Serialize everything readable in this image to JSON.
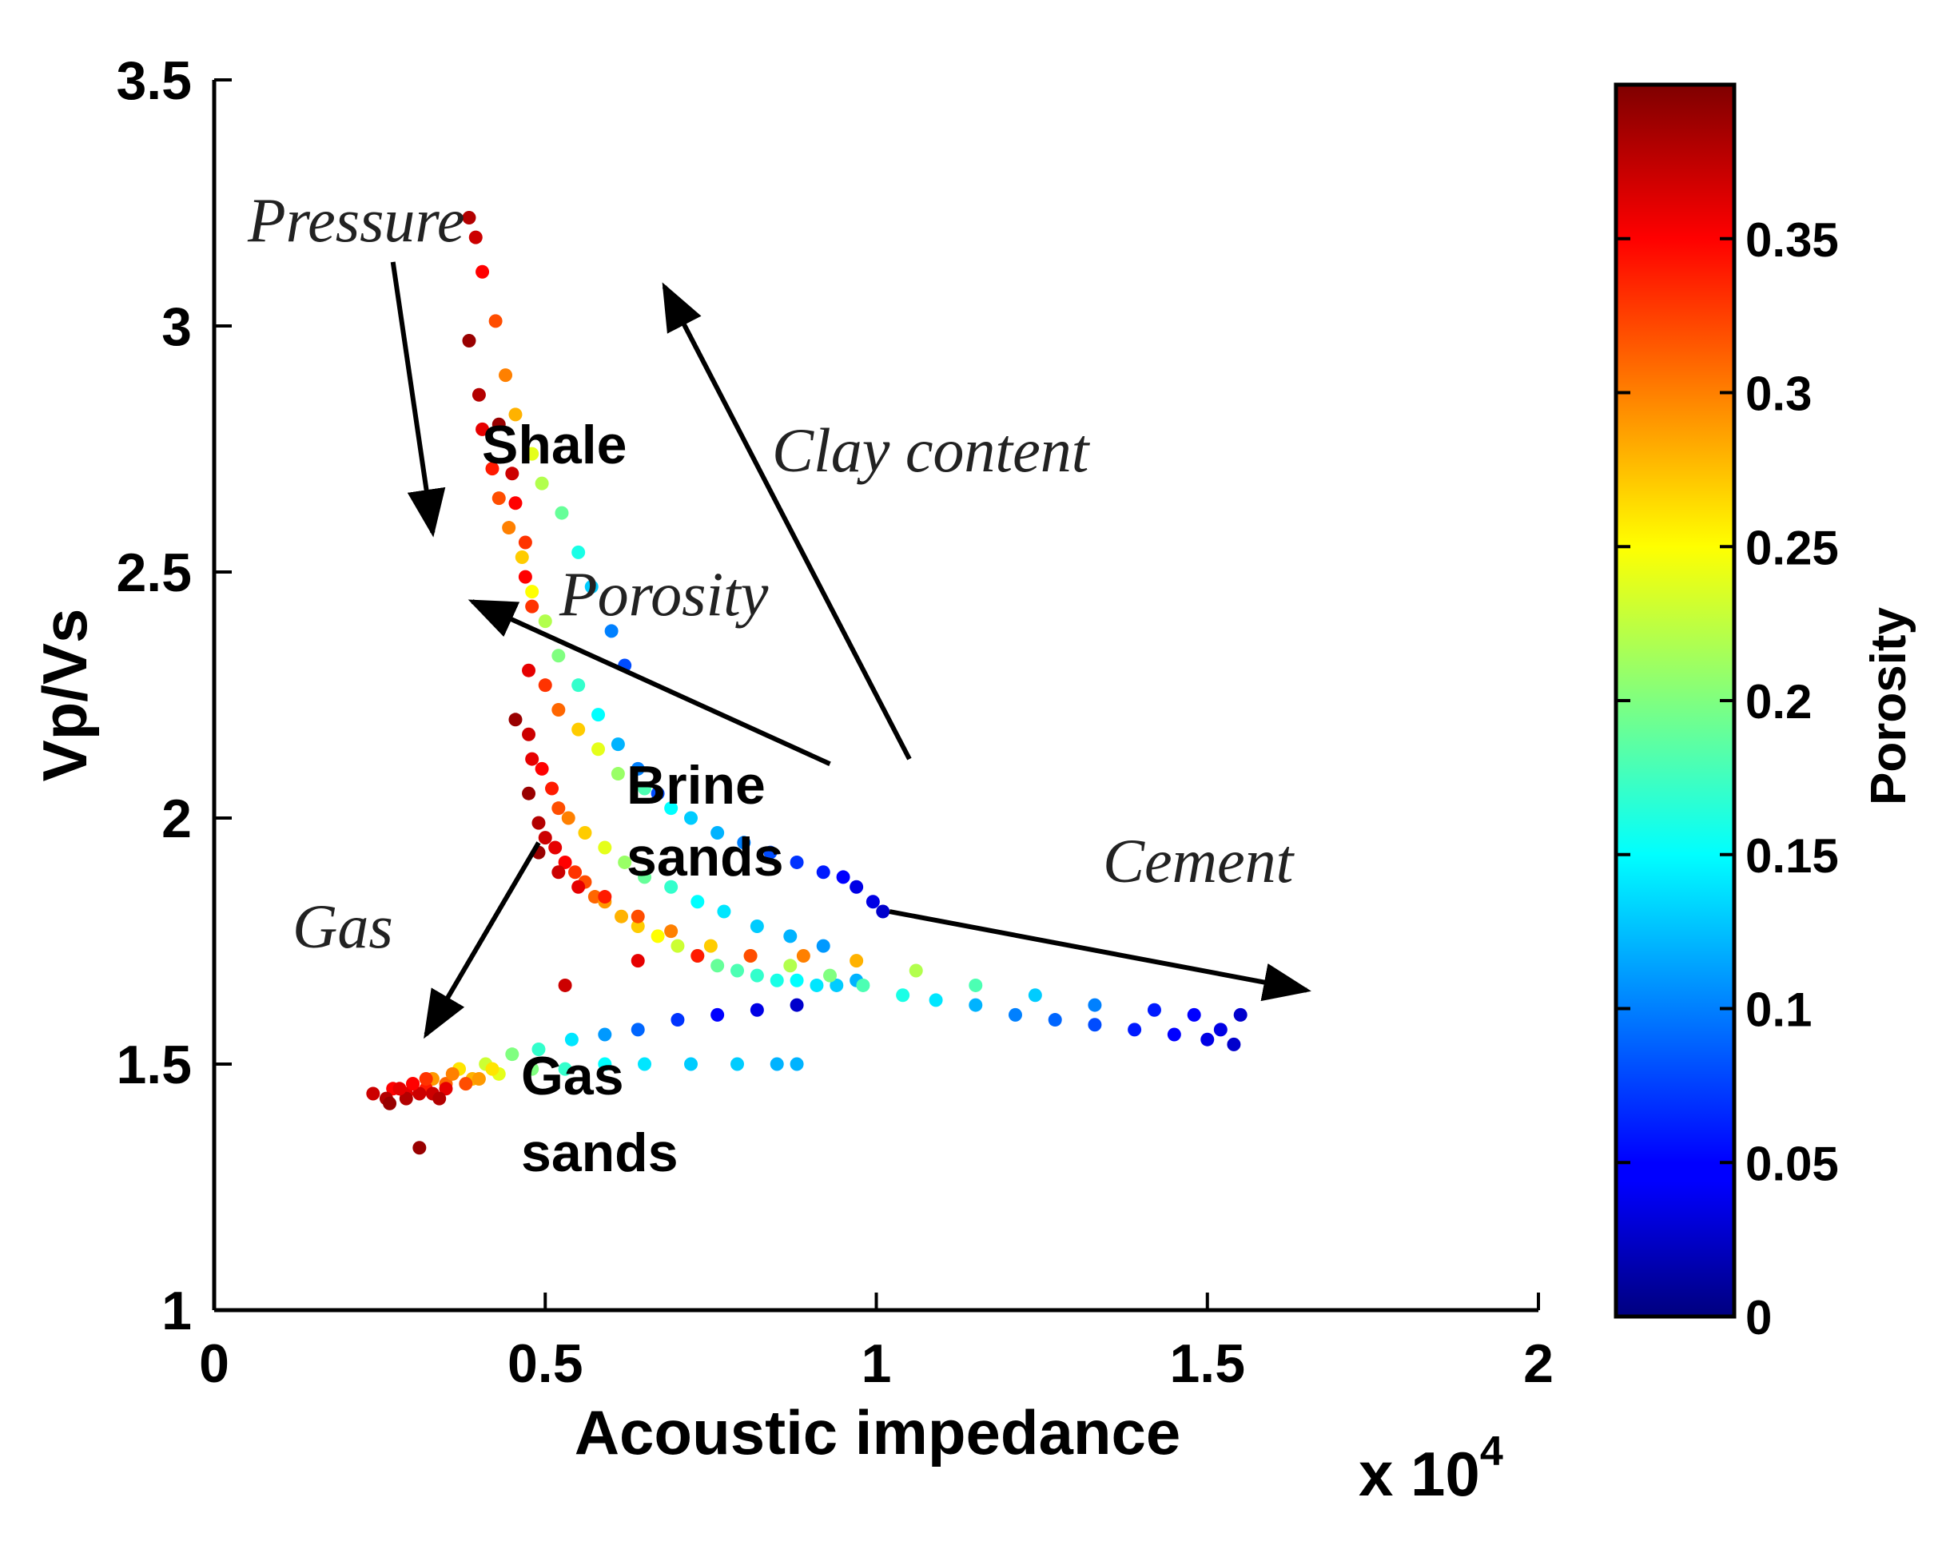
{
  "chart_data": {
    "type": "scatter",
    "xlabel": "Acoustic impedance",
    "xmultiplier": "x 10",
    "xmultiplier_exp": "4",
    "ylabel": "Vp/Vs",
    "xlim": [
      0,
      2
    ],
    "ylim": [
      1,
      3.5
    ],
    "x_ticks": [
      0,
      0.5,
      1,
      1.5,
      2
    ],
    "x_tick_labels": [
      "0",
      "0.5",
      "1",
      "1.5",
      "2"
    ],
    "y_ticks": [
      1,
      1.5,
      2,
      2.5,
      3,
      3.5
    ],
    "y_tick_labels": [
      "1",
      "1.5",
      "2",
      "2.5",
      "3",
      "3.5"
    ],
    "grid": false,
    "colorbar": {
      "label": "Porosity",
      "range": [
        0,
        0.4
      ],
      "colormap": "jet",
      "ticks": [
        0,
        0.05,
        0.1,
        0.15,
        0.2,
        0.25,
        0.3,
        0.35
      ],
      "tick_labels": [
        "0",
        "0.05",
        "0.1",
        "0.15",
        "0.2",
        "0.25",
        "0.3",
        "0.35"
      ]
    },
    "annotations": {
      "shale": "Shale",
      "brine_line1": "Brine",
      "brine_line2": "sands",
      "gas_sands_line1": "Gas",
      "gas_sands_line2": "sands",
      "pressure": "Pressure",
      "clay": "Clay content",
      "porosity": "Porosity",
      "gas": "Gas",
      "cement": "Cement"
    },
    "arrows": [
      {
        "name": "pressure",
        "from": [
          0.27,
          3.13
        ],
        "to": [
          0.33,
          2.58
        ]
      },
      {
        "name": "clay-content",
        "from": [
          1.05,
          2.12
        ],
        "to": [
          0.68,
          3.08
        ]
      },
      {
        "name": "porosity",
        "from": [
          0.93,
          2.11
        ],
        "to": [
          0.39,
          2.44
        ]
      },
      {
        "name": "gas",
        "from": [
          0.49,
          1.95
        ],
        "to": [
          0.32,
          1.56
        ]
      },
      {
        "name": "cement",
        "from": [
          1.02,
          1.81
        ],
        "to": [
          1.65,
          1.65
        ]
      }
    ],
    "series": [
      {
        "points": [
          [
            0.385,
            3.22,
            0.38
          ],
          [
            0.395,
            3.18,
            0.37
          ],
          [
            0.405,
            3.11,
            0.35
          ],
          [
            0.425,
            3.01,
            0.32
          ],
          [
            0.44,
            2.9,
            0.3
          ],
          [
            0.455,
            2.82,
            0.28
          ],
          [
            0.48,
            2.74,
            0.24
          ],
          [
            0.495,
            2.68,
            0.22
          ],
          [
            0.525,
            2.62,
            0.19
          ],
          [
            0.55,
            2.54,
            0.16
          ],
          [
            0.57,
            2.47,
            0.13
          ],
          [
            0.6,
            2.38,
            0.1
          ],
          [
            0.62,
            2.31,
            0.08
          ]
        ]
      },
      {
        "points": [
          [
            0.385,
            2.97,
            0.39
          ],
          [
            0.4,
            2.86,
            0.38
          ],
          [
            0.405,
            2.79,
            0.36
          ],
          [
            0.42,
            2.71,
            0.34
          ],
          [
            0.43,
            2.65,
            0.32
          ],
          [
            0.445,
            2.59,
            0.3
          ],
          [
            0.465,
            2.53,
            0.27
          ],
          [
            0.48,
            2.46,
            0.25
          ],
          [
            0.5,
            2.4,
            0.22
          ],
          [
            0.52,
            2.33,
            0.2
          ],
          [
            0.55,
            2.27,
            0.17
          ],
          [
            0.58,
            2.21,
            0.15
          ],
          [
            0.61,
            2.15,
            0.12
          ],
          [
            0.64,
            2.1,
            0.1
          ],
          [
            0.67,
            2.05,
            0.08
          ]
        ]
      },
      {
        "points": [
          [
            0.43,
            2.8,
            0.39
          ],
          [
            0.45,
            2.7,
            0.37
          ],
          [
            0.455,
            2.64,
            0.35
          ],
          [
            0.47,
            2.56,
            0.33
          ],
          [
            0.47,
            2.49,
            0.35
          ],
          [
            0.48,
            2.43,
            0.33
          ],
          [
            0.475,
            2.3,
            0.36
          ],
          [
            0.5,
            2.27,
            0.33
          ],
          [
            0.52,
            2.22,
            0.31
          ],
          [
            0.55,
            2.18,
            0.27
          ],
          [
            0.58,
            2.14,
            0.24
          ],
          [
            0.61,
            2.09,
            0.21
          ],
          [
            0.65,
            2.06,
            0.18
          ],
          [
            0.69,
            2.02,
            0.15
          ],
          [
            0.72,
            2.0,
            0.13
          ],
          [
            0.76,
            1.97,
            0.12
          ],
          [
            0.8,
            1.95,
            0.1
          ],
          [
            0.84,
            1.93,
            0.08
          ],
          [
            0.88,
            1.91,
            0.07
          ],
          [
            0.92,
            1.89,
            0.06
          ],
          [
            0.95,
            1.88,
            0.05
          ],
          [
            0.97,
            1.86,
            0.04
          ],
          [
            0.995,
            1.83,
            0.04
          ],
          [
            1.01,
            1.81,
            0.03
          ]
        ]
      },
      {
        "points": [
          [
            0.455,
            2.2,
            0.39
          ],
          [
            0.475,
            2.17,
            0.37
          ],
          [
            0.48,
            2.12,
            0.36
          ],
          [
            0.495,
            2.1,
            0.35
          ],
          [
            0.51,
            2.06,
            0.34
          ],
          [
            0.52,
            2.02,
            0.32
          ],
          [
            0.535,
            2.0,
            0.3
          ],
          [
            0.56,
            1.97,
            0.27
          ],
          [
            0.59,
            1.94,
            0.24
          ],
          [
            0.62,
            1.91,
            0.21
          ],
          [
            0.65,
            1.88,
            0.19
          ],
          [
            0.69,
            1.86,
            0.17
          ],
          [
            0.73,
            1.83,
            0.15
          ],
          [
            0.77,
            1.81,
            0.14
          ],
          [
            0.82,
            1.78,
            0.13
          ],
          [
            0.87,
            1.76,
            0.12
          ],
          [
            0.92,
            1.74,
            0.11
          ]
        ]
      },
      {
        "points": [
          [
            0.475,
            2.05,
            0.39
          ],
          [
            0.49,
            1.99,
            0.38
          ],
          [
            0.5,
            1.96,
            0.37
          ],
          [
            0.515,
            1.94,
            0.36
          ],
          [
            0.53,
            1.91,
            0.35
          ],
          [
            0.545,
            1.89,
            0.33
          ],
          [
            0.56,
            1.87,
            0.32
          ],
          [
            0.575,
            1.84,
            0.31
          ],
          [
            0.59,
            1.83,
            0.29
          ],
          [
            0.615,
            1.8,
            0.28
          ],
          [
            0.64,
            1.78,
            0.27
          ],
          [
            0.67,
            1.76,
            0.25
          ],
          [
            0.7,
            1.74,
            0.23
          ],
          [
            0.73,
            1.72,
            0.21
          ],
          [
            0.76,
            1.7,
            0.19
          ],
          [
            0.79,
            1.69,
            0.18
          ],
          [
            0.82,
            1.68,
            0.17
          ],
          [
            0.85,
            1.67,
            0.16
          ],
          [
            0.88,
            1.67,
            0.15
          ],
          [
            0.91,
            1.66,
            0.14
          ],
          [
            0.94,
            1.66,
            0.13
          ],
          [
            0.97,
            1.67,
            0.12
          ]
        ]
      },
      {
        "points": [
          [
            0.49,
            1.93,
            0.39
          ],
          [
            0.52,
            1.89,
            0.37
          ],
          [
            0.55,
            1.86,
            0.36
          ],
          [
            0.59,
            1.84,
            0.34
          ],
          [
            0.64,
            1.8,
            0.32
          ],
          [
            0.69,
            1.77,
            0.3
          ],
          [
            0.75,
            1.74,
            0.27
          ],
          [
            0.81,
            1.72,
            0.25
          ],
          [
            0.87,
            1.7,
            0.22
          ],
          [
            0.93,
            1.68,
            0.2
          ],
          [
            0.98,
            1.66,
            0.18
          ],
          [
            1.04,
            1.64,
            0.16
          ],
          [
            1.09,
            1.63,
            0.14
          ],
          [
            1.15,
            1.62,
            0.12
          ],
          [
            1.21,
            1.6,
            0.1
          ],
          [
            1.27,
            1.59,
            0.09
          ],
          [
            1.33,
            1.58,
            0.08
          ],
          [
            1.39,
            1.57,
            0.06
          ],
          [
            1.45,
            1.56,
            0.05
          ],
          [
            1.5,
            1.55,
            0.04
          ],
          [
            1.54,
            1.54,
            0.03
          ]
        ]
      },
      {
        "points": [
          [
            0.53,
            1.66,
            0.37
          ],
          [
            0.64,
            1.71,
            0.36
          ],
          [
            0.73,
            1.72,
            0.34
          ],
          [
            0.81,
            1.72,
            0.32
          ],
          [
            0.89,
            1.72,
            0.3
          ],
          [
            0.97,
            1.71,
            0.28
          ],
          [
            1.06,
            1.69,
            0.22
          ],
          [
            1.15,
            1.66,
            0.18
          ],
          [
            1.24,
            1.64,
            0.13
          ],
          [
            1.33,
            1.62,
            0.1
          ],
          [
            1.42,
            1.61,
            0.06
          ],
          [
            1.48,
            1.6,
            0.05
          ],
          [
            1.52,
            1.57,
            0.04
          ],
          [
            1.55,
            1.6,
            0.03
          ]
        ]
      },
      {
        "points": [
          [
            0.24,
            1.44,
            0.37
          ],
          [
            0.27,
            1.45,
            0.35
          ],
          [
            0.3,
            1.46,
            0.32
          ],
          [
            0.33,
            1.47,
            0.29
          ],
          [
            0.37,
            1.49,
            0.26
          ],
          [
            0.41,
            1.5,
            0.23
          ],
          [
            0.45,
            1.52,
            0.2
          ],
          [
            0.49,
            1.53,
            0.17
          ],
          [
            0.54,
            1.55,
            0.14
          ],
          [
            0.59,
            1.56,
            0.11
          ],
          [
            0.64,
            1.57,
            0.09
          ],
          [
            0.7,
            1.59,
            0.07
          ],
          [
            0.76,
            1.6,
            0.05
          ],
          [
            0.82,
            1.61,
            0.04
          ],
          [
            0.88,
            1.62,
            0.03
          ]
        ]
      },
      {
        "points": [
          [
            0.26,
            1.43,
            0.38
          ],
          [
            0.29,
            1.44,
            0.36
          ],
          [
            0.32,
            1.45,
            0.34
          ],
          [
            0.35,
            1.46,
            0.31
          ],
          [
            0.39,
            1.47,
            0.28
          ],
          [
            0.43,
            1.48,
            0.24
          ],
          [
            0.48,
            1.49,
            0.2
          ],
          [
            0.53,
            1.49,
            0.17
          ],
          [
            0.59,
            1.5,
            0.15
          ],
          [
            0.65,
            1.5,
            0.14
          ],
          [
            0.72,
            1.5,
            0.13
          ],
          [
            0.79,
            1.5,
            0.13
          ],
          [
            0.85,
            1.5,
            0.12
          ],
          [
            0.88,
            1.5,
            0.12
          ]
        ]
      },
      {
        "points": [
          [
            0.265,
            1.42,
            0.39
          ],
          [
            0.29,
            1.43,
            0.38
          ],
          [
            0.31,
            1.44,
            0.37
          ],
          [
            0.33,
            1.44,
            0.37
          ],
          [
            0.35,
            1.45,
            0.36
          ],
          [
            0.28,
            1.45,
            0.36
          ],
          [
            0.3,
            1.46,
            0.35
          ],
          [
            0.32,
            1.47,
            0.33
          ],
          [
            0.36,
            1.48,
            0.3
          ],
          [
            0.38,
            1.46,
            0.32
          ],
          [
            0.4,
            1.47,
            0.29
          ],
          [
            0.42,
            1.49,
            0.26
          ],
          [
            0.34,
            1.43,
            0.38
          ],
          [
            0.31,
            1.33,
            0.39
          ]
        ]
      }
    ]
  }
}
